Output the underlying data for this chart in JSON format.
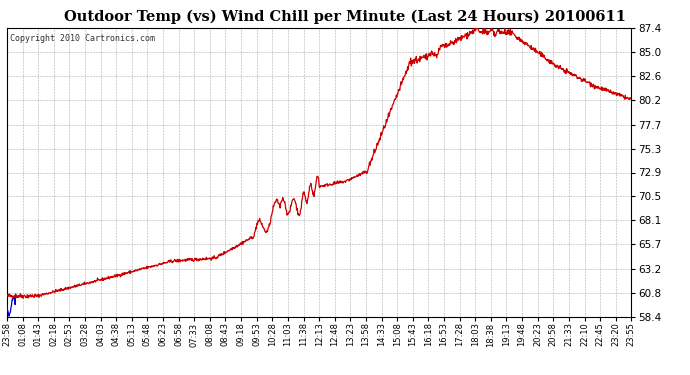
{
  "title": "Outdoor Temp (vs) Wind Chill per Minute (Last 24 Hours) 20100611",
  "copyright": "Copyright 2010 Cartronics.com",
  "background_color": "#ffffff",
  "plot_bg_color": "#ffffff",
  "grid_color": "#aaaaaa",
  "line_color_red": "#cc0000",
  "line_color_blue": "#0000cc",
  "ylim": [
    58.4,
    87.4
  ],
  "yticks": [
    58.4,
    60.8,
    63.2,
    65.7,
    68.1,
    70.5,
    72.9,
    75.3,
    77.7,
    80.2,
    82.6,
    85.0,
    87.4
  ],
  "xtick_labels": [
    "23:58",
    "01:08",
    "01:43",
    "02:18",
    "02:53",
    "03:28",
    "04:03",
    "04:38",
    "05:13",
    "05:48",
    "06:23",
    "06:58",
    "07:33",
    "08:08",
    "08:43",
    "09:18",
    "09:53",
    "10:28",
    "11:03",
    "11:38",
    "12:13",
    "12:48",
    "13:23",
    "13:58",
    "14:33",
    "15:08",
    "15:43",
    "16:18",
    "16:53",
    "17:28",
    "18:03",
    "18:38",
    "19:13",
    "19:48",
    "20:23",
    "20:58",
    "21:33",
    "22:10",
    "22:45",
    "23:20",
    "23:55"
  ],
  "num_points": 1441
}
